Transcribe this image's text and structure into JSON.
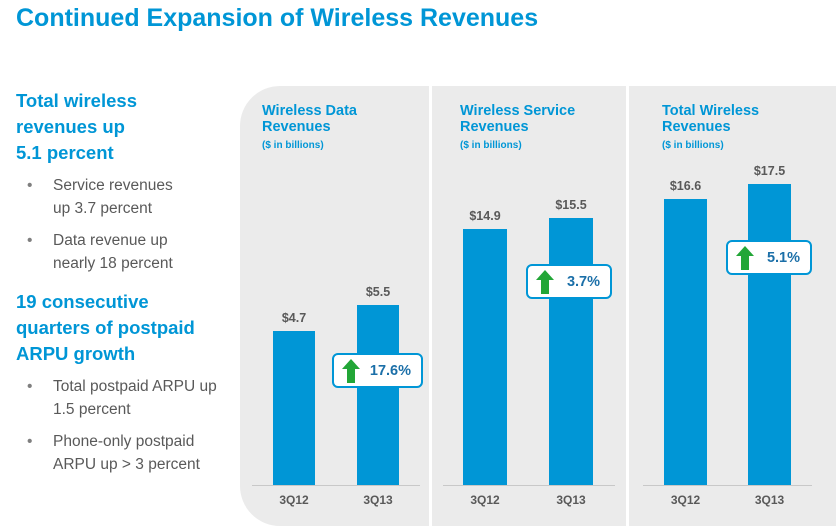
{
  "title": "Continued Expansion of Wireless Revenues",
  "left": {
    "sections": [
      {
        "heading": "Total wireless revenues up 5.1 percent",
        "bullets": [
          "Service revenues up 3.7 percent",
          "Data revenue up nearly 18 percent"
        ]
      },
      {
        "heading": "19 consecutive quarters of postpaid ARPU growth",
        "bullets": [
          "Total postpaid ARPU up 1.5 percent",
          "Phone-only postpaid ARPU up > 3 percent"
        ]
      }
    ]
  },
  "colors": {
    "bar": "#0096d6",
    "arrow": "#22a637",
    "panel": "#ebebeb"
  },
  "chart_data": [
    {
      "type": "bar",
      "title": "Wireless Data Revenues",
      "subtitle": "($ in billions)",
      "categories": [
        "3Q12",
        "3Q13"
      ],
      "values": [
        4.7,
        5.5
      ],
      "labels": [
        "$4.7",
        "$5.5"
      ],
      "change": "17.6%",
      "change_icon": "up-arrow-icon"
    },
    {
      "type": "bar",
      "title": "Wireless Service Revenues",
      "subtitle": "($ in billions)",
      "categories": [
        "3Q12",
        "3Q13"
      ],
      "values": [
        14.9,
        15.5
      ],
      "labels": [
        "$14.9",
        "$15.5"
      ],
      "change": "3.7%",
      "change_icon": "up-arrow-icon"
    },
    {
      "type": "bar",
      "title": "Total Wireless Revenues",
      "subtitle": "($ in billions)",
      "categories": [
        "3Q12",
        "3Q13"
      ],
      "values": [
        16.6,
        17.5
      ],
      "labels": [
        "$16.6",
        "$17.5"
      ],
      "change": "5.1%",
      "change_icon": "up-arrow-icon"
    }
  ]
}
